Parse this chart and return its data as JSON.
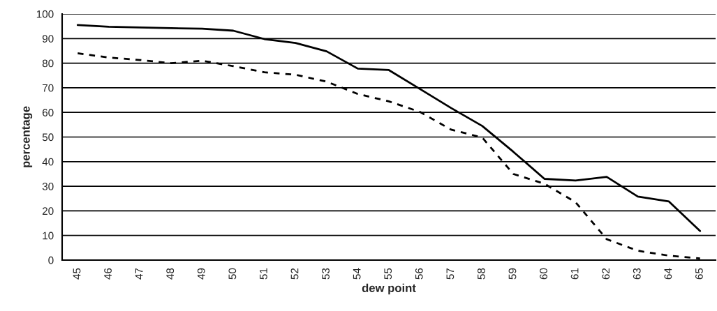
{
  "chart_data": {
    "type": "line",
    "xlabel": "dew point",
    "ylabel": "percentage",
    "categories": [
      "45",
      "46",
      "47",
      "48",
      "49",
      "50",
      "51",
      "52",
      "53",
      "54",
      "55",
      "56",
      "57",
      "58",
      "59",
      "60",
      "61",
      "62",
      "63",
      "64",
      "65"
    ],
    "series": [
      {
        "color": "#000000",
        "line_style": "solid",
        "values": [
          95.5,
          94.8,
          94.5,
          94.2,
          94,
          93.2,
          89.8,
          88.2,
          84.8,
          77.8,
          77.2,
          69.5,
          61.8,
          54.5,
          44,
          33,
          32.3,
          33.8,
          25.8,
          23.8,
          11.8
        ]
      },
      {
        "color": "#000000",
        "line_style": "dashed",
        "values": [
          84,
          82.3,
          81.3,
          80,
          81,
          78.8,
          76.3,
          75.3,
          72.5,
          67.5,
          64.5,
          60.2,
          53,
          49.8,
          35,
          31,
          23.5,
          8.5,
          3.8,
          1.8,
          0.7
        ]
      }
    ],
    "ylim": [
      0,
      100
    ],
    "yticks": [
      0,
      10,
      20,
      30,
      40,
      50,
      60,
      70,
      80,
      90,
      100
    ],
    "grid": "y",
    "legend": false
  }
}
